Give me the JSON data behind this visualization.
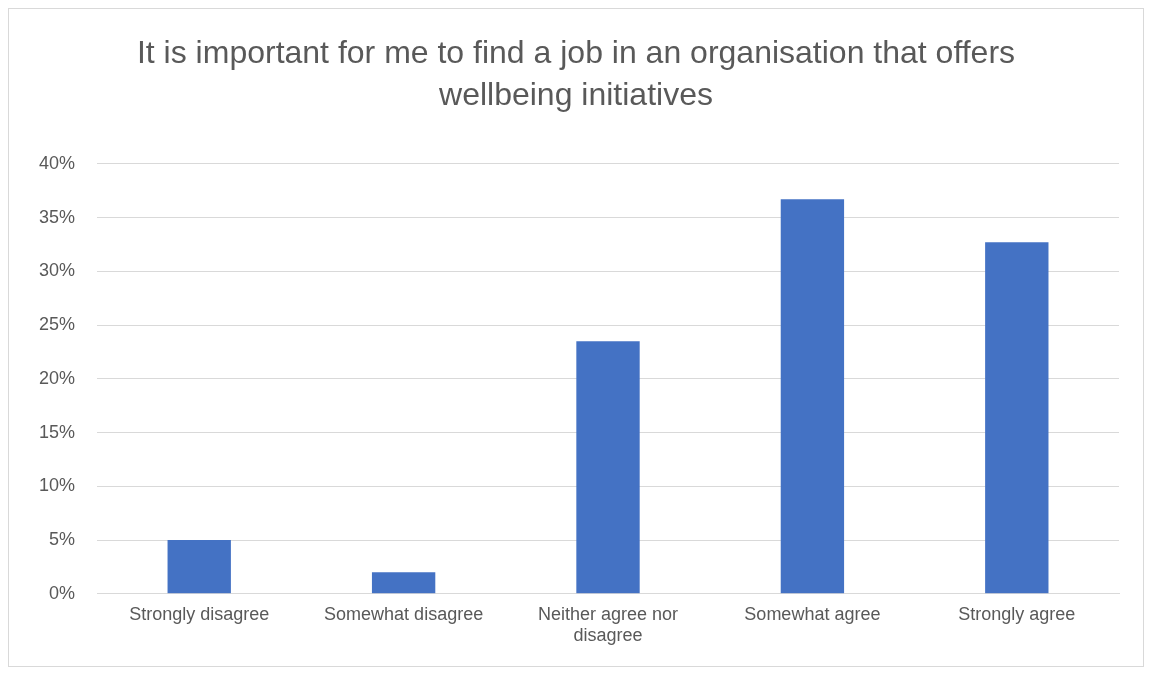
{
  "chart_data": {
    "type": "bar",
    "title": "It is important for me to find a job in an organisation that offers wellbeing initiatives",
    "categories": [
      "Strongly disagree",
      "Somewhat disagree",
      "Neither agree nor disagree",
      "Somewhat agree",
      "Strongly agree"
    ],
    "values": [
      5.0,
      2.0,
      23.5,
      36.7,
      32.7
    ],
    "color": "#4472c4",
    "ylim": [
      0,
      40
    ],
    "yticks": [
      {
        "value": 0,
        "label": "0%"
      },
      {
        "value": 5,
        "label": "5%"
      },
      {
        "value": 10,
        "label": "10%"
      },
      {
        "value": 15,
        "label": "15%"
      },
      {
        "value": 20,
        "label": "20%"
      },
      {
        "value": 25,
        "label": "25%"
      },
      {
        "value": 30,
        "label": "30%"
      },
      {
        "value": 35,
        "label": "35%"
      },
      {
        "value": 40,
        "label": "40%"
      }
    ],
    "grid": "y"
  }
}
